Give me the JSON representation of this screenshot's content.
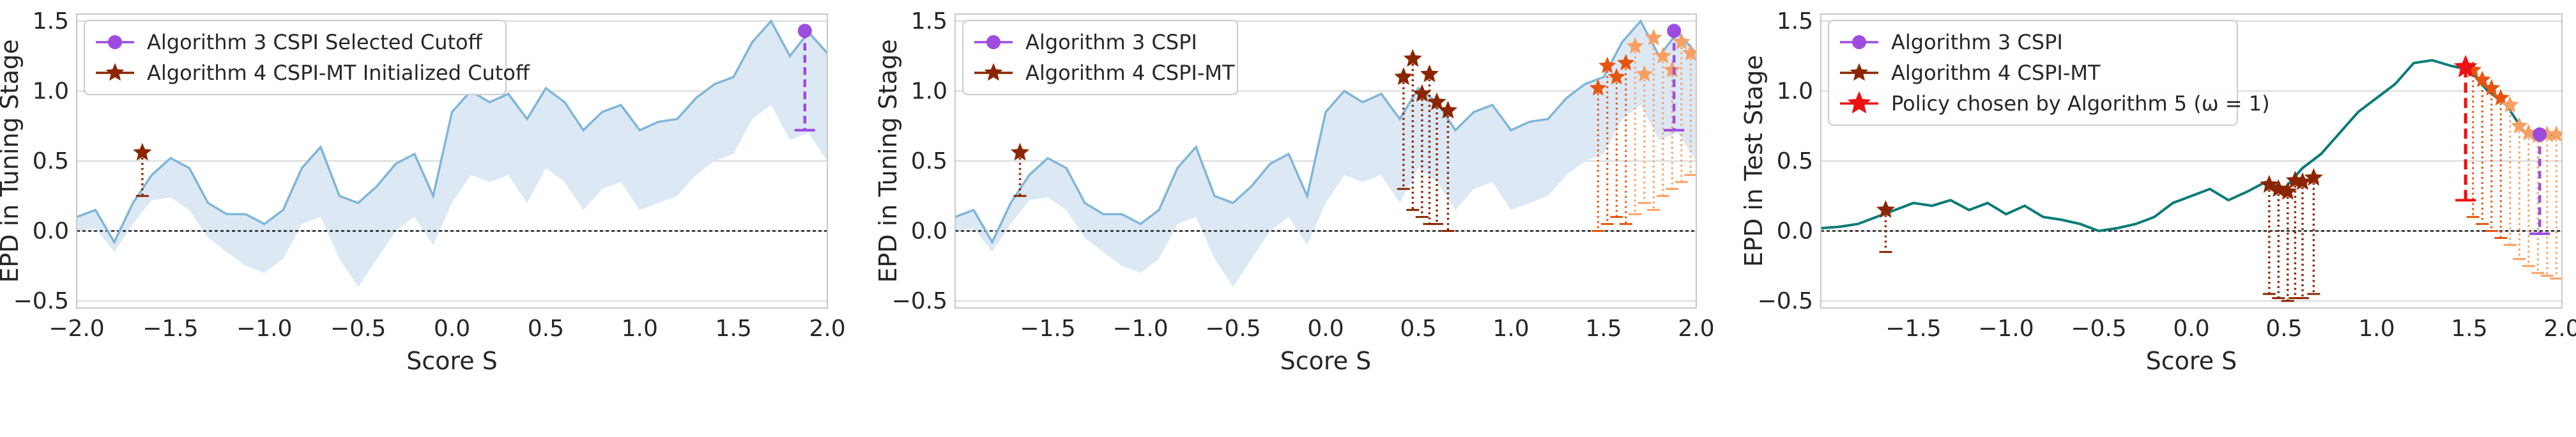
{
  "colors": {
    "tuning_curve": "#7fb6d8",
    "band": "#dce9f5",
    "test_curve": "#0b7b77",
    "cspi": "#9d4ce0",
    "cspimt": "#8b2500",
    "chosen": "#ee1111",
    "orange_dark": "#e8540f",
    "orange_light": "#f7a062",
    "grid": "#d9d9d9",
    "zero_line": "#222222"
  },
  "chart_data": [
    {
      "type": "line",
      "panel": "left",
      "xlabel": "Score S",
      "ylabel": "EPD in Tuning Stage",
      "xlim": [
        -2.0,
        2.0
      ],
      "ylim": [
        -0.55,
        1.55
      ],
      "xticks": [
        "−2.0",
        "−1.5",
        "−1.0",
        "−0.5",
        "0.0",
        "0.5",
        "1.0",
        "1.5",
        "2.0"
      ],
      "xtick_values": [
        -2.0,
        -1.5,
        -1.0,
        -0.5,
        0.0,
        0.5,
        1.0,
        1.5,
        2.0
      ],
      "yticks": [
        "−0.5",
        "0.0",
        "0.5",
        "1.0",
        "1.5"
      ],
      "ytick_values": [
        -0.5,
        0.0,
        0.5,
        1.0,
        1.5
      ],
      "grid": "horizontal",
      "legend_position": "top-left",
      "legend": [
        "Algorithm 3 CSPI Selected Cutoff",
        "Algorithm 4 CSPI-MT Initialized Cutoff"
      ],
      "curve_x": [
        -2.0,
        -1.9,
        -1.8,
        -1.7,
        -1.6,
        -1.5,
        -1.4,
        -1.3,
        -1.2,
        -1.1,
        -1.0,
        -0.9,
        -0.8,
        -0.7,
        -0.6,
        -0.5,
        -0.4,
        -0.3,
        -0.2,
        -0.1,
        0.0,
        0.1,
        0.2,
        0.3,
        0.4,
        0.5,
        0.6,
        0.7,
        0.8,
        0.9,
        1.0,
        1.1,
        1.2,
        1.3,
        1.4,
        1.5,
        1.6,
        1.7,
        1.8,
        1.9,
        2.0
      ],
      "curve_y": [
        0.1,
        0.15,
        -0.08,
        0.2,
        0.4,
        0.52,
        0.45,
        0.2,
        0.12,
        0.12,
        0.05,
        0.15,
        0.45,
        0.6,
        0.25,
        0.2,
        0.32,
        0.48,
        0.55,
        0.25,
        0.85,
        1.0,
        0.92,
        0.98,
        0.8,
        1.02,
        0.92,
        0.72,
        0.85,
        0.9,
        0.72,
        0.78,
        0.8,
        0.95,
        1.05,
        1.1,
        1.35,
        1.5,
        1.25,
        1.42,
        1.27
      ],
      "band_lower": [
        0.0,
        0.02,
        -0.15,
        0.05,
        0.22,
        0.24,
        0.15,
        -0.05,
        -0.15,
        -0.25,
        -0.3,
        -0.2,
        0.05,
        0.1,
        -0.2,
        -0.4,
        -0.2,
        0.0,
        0.1,
        -0.1,
        0.2,
        0.4,
        0.35,
        0.4,
        0.2,
        0.45,
        0.35,
        0.15,
        0.3,
        0.35,
        0.15,
        0.2,
        0.25,
        0.4,
        0.5,
        0.55,
        0.8,
        0.9,
        0.65,
        0.7,
        0.5
      ],
      "cspi_point": {
        "x": 1.88,
        "y": 1.43,
        "lower": 0.72
      },
      "cspimt_points": [
        {
          "x": -1.65,
          "y": 0.56,
          "lower": 0.25
        }
      ],
      "orange_points": [],
      "chosen_point": null
    },
    {
      "type": "line",
      "panel": "middle",
      "xlabel": "Score S",
      "ylabel": "EPD in Tuning Stage",
      "xlim": [
        -2.0,
        2.0
      ],
      "ylim": [
        -0.55,
        1.55
      ],
      "xticks": [
        "−1.5",
        "−1.0",
        "−0.5",
        "0.0",
        "0.5",
        "1.0",
        "1.5",
        "2.0"
      ],
      "xtick_values": [
        -1.5,
        -1.0,
        -0.5,
        0.0,
        0.5,
        1.0,
        1.5,
        2.0
      ],
      "yticks": [
        "−0.5",
        "0.0",
        "0.5",
        "1.0",
        "1.5"
      ],
      "ytick_values": [
        -0.5,
        0.0,
        0.5,
        1.0,
        1.5
      ],
      "grid": "horizontal",
      "legend_position": "top-left",
      "legend": [
        "Algorithm 3 CSPI",
        "Algorithm 4 CSPI-MT"
      ],
      "curve_x": [
        -2.0,
        -1.9,
        -1.8,
        -1.7,
        -1.6,
        -1.5,
        -1.4,
        -1.3,
        -1.2,
        -1.1,
        -1.0,
        -0.9,
        -0.8,
        -0.7,
        -0.6,
        -0.5,
        -0.4,
        -0.3,
        -0.2,
        -0.1,
        0.0,
        0.1,
        0.2,
        0.3,
        0.4,
        0.5,
        0.6,
        0.7,
        0.8,
        0.9,
        1.0,
        1.1,
        1.2,
        1.3,
        1.4,
        1.5,
        1.6,
        1.7,
        1.8,
        1.9,
        2.0
      ],
      "curve_y": [
        0.1,
        0.15,
        -0.08,
        0.2,
        0.4,
        0.52,
        0.45,
        0.2,
        0.12,
        0.12,
        0.05,
        0.15,
        0.45,
        0.6,
        0.25,
        0.2,
        0.32,
        0.48,
        0.55,
        0.25,
        0.85,
        1.0,
        0.92,
        0.98,
        0.8,
        1.02,
        0.92,
        0.72,
        0.85,
        0.9,
        0.72,
        0.78,
        0.8,
        0.95,
        1.05,
        1.1,
        1.35,
        1.5,
        1.25,
        1.42,
        1.27
      ],
      "band_lower": [
        0.0,
        0.02,
        -0.15,
        0.05,
        0.22,
        0.24,
        0.15,
        -0.05,
        -0.15,
        -0.25,
        -0.3,
        -0.2,
        0.05,
        0.1,
        -0.2,
        -0.4,
        -0.2,
        0.0,
        0.1,
        -0.1,
        0.2,
        0.4,
        0.35,
        0.4,
        0.2,
        0.45,
        0.35,
        0.15,
        0.3,
        0.35,
        0.15,
        0.2,
        0.25,
        0.4,
        0.5,
        0.55,
        0.8,
        0.9,
        0.65,
        0.7,
        0.5
      ],
      "cspi_point": {
        "x": 1.88,
        "y": 1.43,
        "lower": 0.72
      },
      "cspimt_points": [
        {
          "x": -1.65,
          "y": 0.56,
          "lower": 0.25
        },
        {
          "x": 0.42,
          "y": 1.1,
          "lower": 0.3
        },
        {
          "x": 0.47,
          "y": 1.23,
          "lower": 0.15
        },
        {
          "x": 0.52,
          "y": 0.98,
          "lower": 0.1
        },
        {
          "x": 0.56,
          "y": 1.12,
          "lower": 0.05
        },
        {
          "x": 0.6,
          "y": 0.92,
          "lower": 0.05
        },
        {
          "x": 0.66,
          "y": 0.86,
          "lower": 0.0
        }
      ],
      "orange_points": [
        {
          "x": 1.47,
          "y": 1.02,
          "lower": 0.0
        },
        {
          "x": 1.52,
          "y": 1.18,
          "lower": 0.05
        },
        {
          "x": 1.57,
          "y": 1.1,
          "lower": 0.1
        },
        {
          "x": 1.62,
          "y": 1.2,
          "lower": 0.05
        },
        {
          "x": 1.67,
          "y": 1.32,
          "lower": 0.12
        },
        {
          "x": 1.72,
          "y": 1.12,
          "lower": 0.2
        },
        {
          "x": 1.77,
          "y": 1.38,
          "lower": 0.15
        },
        {
          "x": 1.82,
          "y": 1.25,
          "lower": 0.25
        },
        {
          "x": 1.87,
          "y": 1.15,
          "lower": 0.3
        },
        {
          "x": 1.92,
          "y": 1.35,
          "lower": 0.35
        },
        {
          "x": 1.97,
          "y": 1.27,
          "lower": 0.4
        }
      ],
      "chosen_point": null
    },
    {
      "type": "line",
      "panel": "right",
      "xlabel": "Score S",
      "ylabel": "EPD in Test Stage",
      "xlim": [
        -2.0,
        2.0
      ],
      "ylim": [
        -0.55,
        1.55
      ],
      "xticks": [
        "−1.5",
        "−1.0",
        "−0.5",
        "0.0",
        "0.5",
        "1.0",
        "1.5",
        "2.0"
      ],
      "xtick_values": [
        -1.5,
        -1.0,
        -0.5,
        0.0,
        0.5,
        1.0,
        1.5,
        2.0
      ],
      "yticks": [
        "−0.5",
        "0.0",
        "0.5",
        "1.0",
        "1.5"
      ],
      "ytick_values": [
        -0.5,
        0.0,
        0.5,
        1.0,
        1.5
      ],
      "grid": "horizontal",
      "legend_position": "top-left",
      "legend": [
        "Algorithm 3 CSPI",
        "Algorithm 4 CSPI-MT",
        "Policy chosen by Algorithm 5 (ω = 1)"
      ],
      "curve_x": [
        -2.0,
        -1.9,
        -1.8,
        -1.7,
        -1.6,
        -1.5,
        -1.4,
        -1.3,
        -1.2,
        -1.1,
        -1.0,
        -0.9,
        -0.8,
        -0.7,
        -0.6,
        -0.5,
        -0.4,
        -0.3,
        -0.2,
        -0.1,
        0.0,
        0.1,
        0.2,
        0.3,
        0.4,
        0.5,
        0.6,
        0.7,
        0.8,
        0.9,
        1.0,
        1.1,
        1.2,
        1.3,
        1.4,
        1.5,
        1.6,
        1.7,
        1.8,
        1.9,
        2.0
      ],
      "curve_y": [
        0.02,
        0.03,
        0.05,
        0.1,
        0.15,
        0.2,
        0.18,
        0.22,
        0.15,
        0.2,
        0.12,
        0.18,
        0.1,
        0.08,
        0.05,
        0.0,
        0.02,
        0.05,
        0.1,
        0.2,
        0.25,
        0.3,
        0.22,
        0.28,
        0.35,
        0.3,
        0.45,
        0.55,
        0.7,
        0.85,
        0.95,
        1.05,
        1.2,
        1.22,
        1.18,
        1.15,
        1.0,
        0.9,
        0.7,
        0.68,
        0.69
      ],
      "band_lower": [],
      "cspi_point": {
        "x": 1.88,
        "y": 0.69,
        "lower": -0.02
      },
      "cspimt_points": [
        {
          "x": -1.65,
          "y": 0.15,
          "lower": -0.15
        },
        {
          "x": 0.42,
          "y": 0.33,
          "lower": -0.45
        },
        {
          "x": 0.47,
          "y": 0.3,
          "lower": -0.48
        },
        {
          "x": 0.52,
          "y": 0.28,
          "lower": -0.5
        },
        {
          "x": 0.56,
          "y": 0.36,
          "lower": -0.48
        },
        {
          "x": 0.6,
          "y": 0.35,
          "lower": -0.48
        },
        {
          "x": 0.66,
          "y": 0.38,
          "lower": -0.45
        }
      ],
      "orange_points": [
        {
          "x": 1.52,
          "y": 1.15,
          "lower": 0.1
        },
        {
          "x": 1.57,
          "y": 1.08,
          "lower": 0.05
        },
        {
          "x": 1.62,
          "y": 1.02,
          "lower": 0.0
        },
        {
          "x": 1.67,
          "y": 0.95,
          "lower": -0.05
        },
        {
          "x": 1.72,
          "y": 0.9,
          "lower": -0.1
        },
        {
          "x": 1.77,
          "y": 0.75,
          "lower": -0.2
        },
        {
          "x": 1.82,
          "y": 0.7,
          "lower": -0.25
        },
        {
          "x": 1.87,
          "y": 0.68,
          "lower": -0.3
        },
        {
          "x": 1.92,
          "y": 0.69,
          "lower": -0.32
        },
        {
          "x": 1.97,
          "y": 0.69,
          "lower": -0.34
        }
      ],
      "chosen_point": {
        "x": 1.48,
        "y": 1.17,
        "lower": 0.22
      }
    }
  ]
}
